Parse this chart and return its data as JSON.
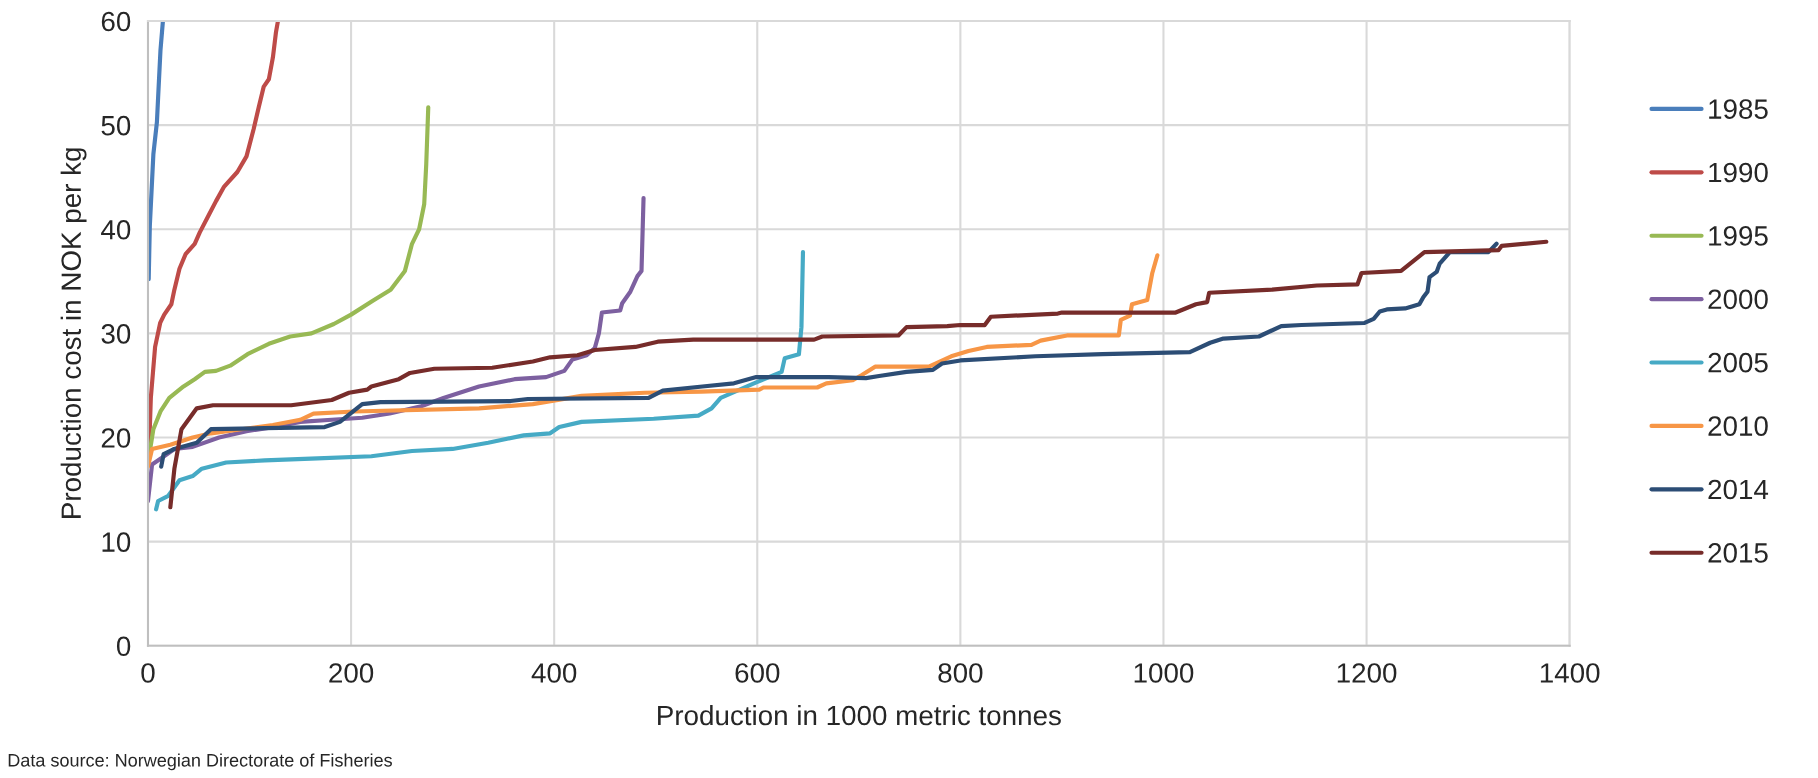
{
  "chart_data": {
    "type": "line",
    "xlabel": "Production in 1000 metric tonnes",
    "ylabel": "Production cost in NOK per kg",
    "xlim": [
      0,
      1400
    ],
    "xticks": [
      0,
      200,
      400,
      600,
      800,
      1000,
      1200,
      1400
    ],
    "ylim": [
      0,
      60
    ],
    "yticks": [
      0,
      10,
      20,
      30,
      40,
      50,
      60
    ],
    "grid": true,
    "legend": "right",
    "marker": "none",
    "line_style": "solid",
    "annotations": [
      "Data source: Norwegian Directorate of Fisheries"
    ],
    "series": [
      {
        "name": "1985",
        "color": "#4a7ebb",
        "x": [
          0.7,
          1.8,
          5.3,
          8.8,
          10.5,
          12.3,
          14.7
        ],
        "values": [
          35.2,
          40.3,
          47.2,
          50.3,
          53.7,
          57.2,
          60
        ]
      },
      {
        "name": "1990",
        "color": "#be4b48",
        "x": [
          0.7,
          2.8,
          7,
          12,
          16,
          23,
          26,
          31,
          37,
          46,
          51,
          60,
          67,
          75,
          88,
          97,
          104,
          109,
          114,
          119,
          123,
          126,
          128
        ],
        "values": [
          17.7,
          23.8,
          28.7,
          31,
          31.8,
          32.8,
          34.2,
          36.2,
          37.6,
          38.6,
          39.7,
          41.4,
          42.7,
          44.1,
          45.5,
          47,
          49.6,
          51.7,
          53.7,
          54.4,
          56.5,
          58.9,
          60
        ]
      },
      {
        "name": "1995",
        "color": "#98b954",
        "x": [
          0.7,
          5.3,
          12.3,
          21,
          35,
          46,
          56,
          67,
          81,
          98,
          119,
          140,
          161,
          183,
          200,
          221,
          239,
          253,
          260,
          267,
          272,
          274,
          276
        ],
        "values": [
          18,
          20.8,
          22.5,
          23.8,
          24.9,
          25.6,
          26.3,
          26.4,
          26.9,
          28,
          29,
          29.7,
          30,
          30.9,
          31.8,
          33.1,
          34.2,
          36,
          38.6,
          40,
          42.4,
          46.2,
          51.7
        ]
      },
      {
        "name": "2000",
        "color": "#7d60a0",
        "x": [
          0,
          4,
          13,
          26,
          44,
          70,
          97,
          123,
          150,
          181,
          211,
          238,
          269,
          291,
          326,
          361,
          392,
          410,
          418,
          432,
          440,
          444,
          447,
          465,
          467,
          475,
          482,
          486,
          488
        ],
        "values": [
          13.9,
          17.4,
          18,
          18.9,
          19.1,
          20,
          20.6,
          21,
          21.5,
          21.7,
          21.9,
          22.3,
          23,
          23.8,
          24.9,
          25.6,
          25.8,
          26.4,
          27.5,
          27.9,
          28.6,
          30,
          32,
          32.2,
          32.9,
          34,
          35.5,
          36,
          43
        ]
      },
      {
        "name": "2005",
        "color": "#46aac5",
        "x": [
          8,
          10,
          20,
          31,
          44,
          53,
          77,
          115,
          167,
          220,
          260,
          300,
          335,
          370,
          396,
          405,
          427,
          498,
          542,
          555,
          564,
          599,
          624,
          627,
          641,
          643.5,
          645
        ],
        "values": [
          13.1,
          13.9,
          14.4,
          15.9,
          16.3,
          17,
          17.6,
          17.8,
          18,
          18.2,
          18.7,
          18.9,
          19.5,
          20.2,
          20.4,
          21,
          21.5,
          21.8,
          22.1,
          22.8,
          23.8,
          25.3,
          26.3,
          27.6,
          28,
          30.6,
          37.8
        ]
      },
      {
        "name": "2010",
        "color": "#f79646",
        "x": [
          0,
          4,
          22,
          44,
          62,
          123,
          150,
          163,
          203,
          326,
          379,
          427,
          489,
          545,
          602,
          606,
          659,
          668,
          694,
          703,
          716,
          769,
          791,
          808,
          826,
          870,
          879,
          905,
          956,
          958,
          967,
          969,
          984,
          989,
          994
        ],
        "values": [
          17.2,
          18.9,
          19.3,
          20,
          20.4,
          21.2,
          21.7,
          22.3,
          22.5,
          22.8,
          23.2,
          24,
          24.3,
          24.4,
          24.6,
          24.8,
          24.8,
          25.2,
          25.5,
          26,
          26.8,
          26.8,
          27.8,
          28.3,
          28.7,
          28.9,
          29.3,
          29.8,
          29.8,
          31.3,
          31.7,
          32.8,
          33.2,
          35.8,
          37.5
        ]
      },
      {
        "name": "2014",
        "color": "#2c4d75",
        "x": [
          13,
          15.4,
          26,
          48,
          62,
          115,
          174,
          189,
          211,
          229,
          357,
          374,
          493,
          507,
          546,
          577,
          599,
          670,
          707,
          720,
          747,
          773,
          782,
          800,
          874,
          940,
          1026,
          1046,
          1059,
          1094,
          1116,
          1136,
          1198,
          1207,
          1213,
          1220,
          1238,
          1252,
          1256,
          1260,
          1262,
          1269,
          1272,
          1282,
          1320,
          1328
        ],
        "values": [
          17.2,
          18.4,
          18.9,
          19.5,
          20.8,
          20.9,
          21,
          21.5,
          23.2,
          23.4,
          23.5,
          23.7,
          23.8,
          24.5,
          24.9,
          25.2,
          25.8,
          25.8,
          25.7,
          25.9,
          26.3,
          26.5,
          27.1,
          27.4,
          27.8,
          28,
          28.2,
          29.1,
          29.5,
          29.7,
          30.7,
          30.8,
          31,
          31.4,
          32.1,
          32.3,
          32.4,
          32.8,
          33.5,
          34,
          35.4,
          35.9,
          36.7,
          37.8,
          37.8,
          38.6
        ]
      },
      {
        "name": "2015",
        "color": "#772c2a",
        "x": [
          22,
          26,
          33,
          48,
          64,
          141,
          181,
          198,
          216,
          220,
          247,
          258,
          282,
          339,
          379,
          396,
          423,
          440,
          480,
          502,
          537,
          656,
          664,
          739,
          747,
          787,
          800,
          824,
          830,
          896,
          900,
          1012,
          1032,
          1043,
          1045,
          1107,
          1151,
          1191,
          1195,
          1234,
          1257,
          1330,
          1333,
          1377
        ],
        "values": [
          13.3,
          17,
          20.8,
          22.8,
          23.1,
          23.1,
          23.6,
          24.3,
          24.6,
          24.9,
          25.6,
          26.2,
          26.6,
          26.7,
          27.3,
          27.7,
          27.9,
          28.4,
          28.7,
          29.2,
          29.4,
          29.4,
          29.7,
          29.8,
          30.6,
          30.7,
          30.8,
          30.8,
          31.6,
          31.9,
          32,
          32,
          32.8,
          33,
          33.9,
          34.2,
          34.6,
          34.7,
          35.8,
          36,
          37.8,
          38,
          38.4,
          38.8
        ]
      }
    ]
  }
}
